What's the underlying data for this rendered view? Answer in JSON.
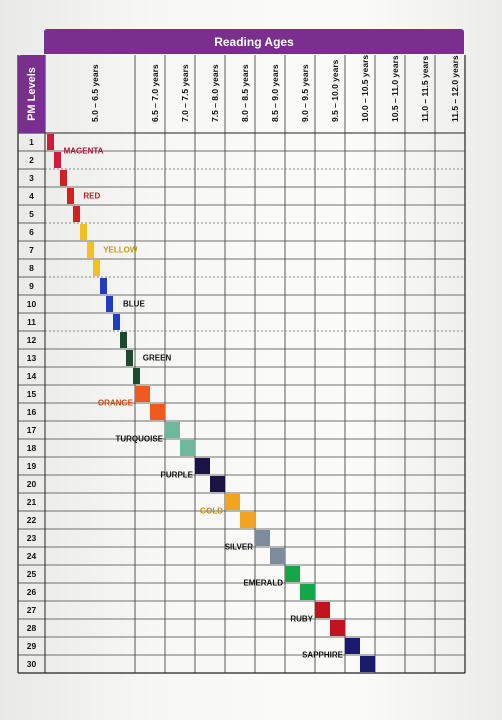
{
  "header": {
    "title": "Reading Ages",
    "side_title": "PM Levels"
  },
  "columns": [
    "5.0 – 6.5 years",
    "6.5 – 7.0 years",
    "7.0 – 7.5 years",
    "7.5 – 8.0 years",
    "8.0 – 8.5 years",
    "8.5 – 9.0 years",
    "9.0 – 9.5 years",
    "9.5 – 10.0 years",
    "10.0 – 10.5 years",
    "10.5 – 11.0 years",
    "11.0 – 11.5 years",
    "11.5 – 12.0 years"
  ],
  "rows": [
    "1",
    "2",
    "3",
    "4",
    "5",
    "6",
    "7",
    "8",
    "9",
    "10",
    "11",
    "12",
    "13",
    "14",
    "15",
    "16",
    "17",
    "18",
    "19",
    "20",
    "21",
    "22",
    "23",
    "24",
    "25",
    "26",
    "27",
    "28",
    "29",
    "30"
  ],
  "groups": [
    {
      "label": "MAGENTA",
      "color": "#d31a3e",
      "label_color": "#b0163a"
    },
    {
      "label": "RED",
      "color": "#d42020",
      "label_color": "#c01d1d"
    },
    {
      "label": "YELLOW",
      "color": "#f2c020",
      "label_color": "#c99a10"
    },
    {
      "label": "BLUE",
      "color": "#1f3fbf",
      "label_color": "#111111"
    },
    {
      "label": "GREEN",
      "color": "#1d4a2e",
      "label_color": "#111111"
    },
    {
      "label": "ORANGE",
      "color": "#f05a1e",
      "label_color": "#d24a14"
    },
    {
      "label": "TURQUOISE",
      "color": "#6fb89e",
      "label_color": "#111111"
    },
    {
      "label": "PURPLE",
      "color": "#1a1446",
      "label_color": "#111111"
    },
    {
      "label": "GOLD",
      "color": "#f1a51e",
      "label_color": "#c98a10"
    },
    {
      "label": "SILVER",
      "color": "#7d8c9c",
      "label_color": "#111111"
    },
    {
      "label": "EMERALD",
      "color": "#16a64a",
      "label_color": "#111111"
    },
    {
      "label": "RUBY",
      "color": "#c21420",
      "label_color": "#111111"
    },
    {
      "label": "SAPPHIRE",
      "color": "#1a1a6e",
      "label_color": "#111111"
    }
  ]
}
